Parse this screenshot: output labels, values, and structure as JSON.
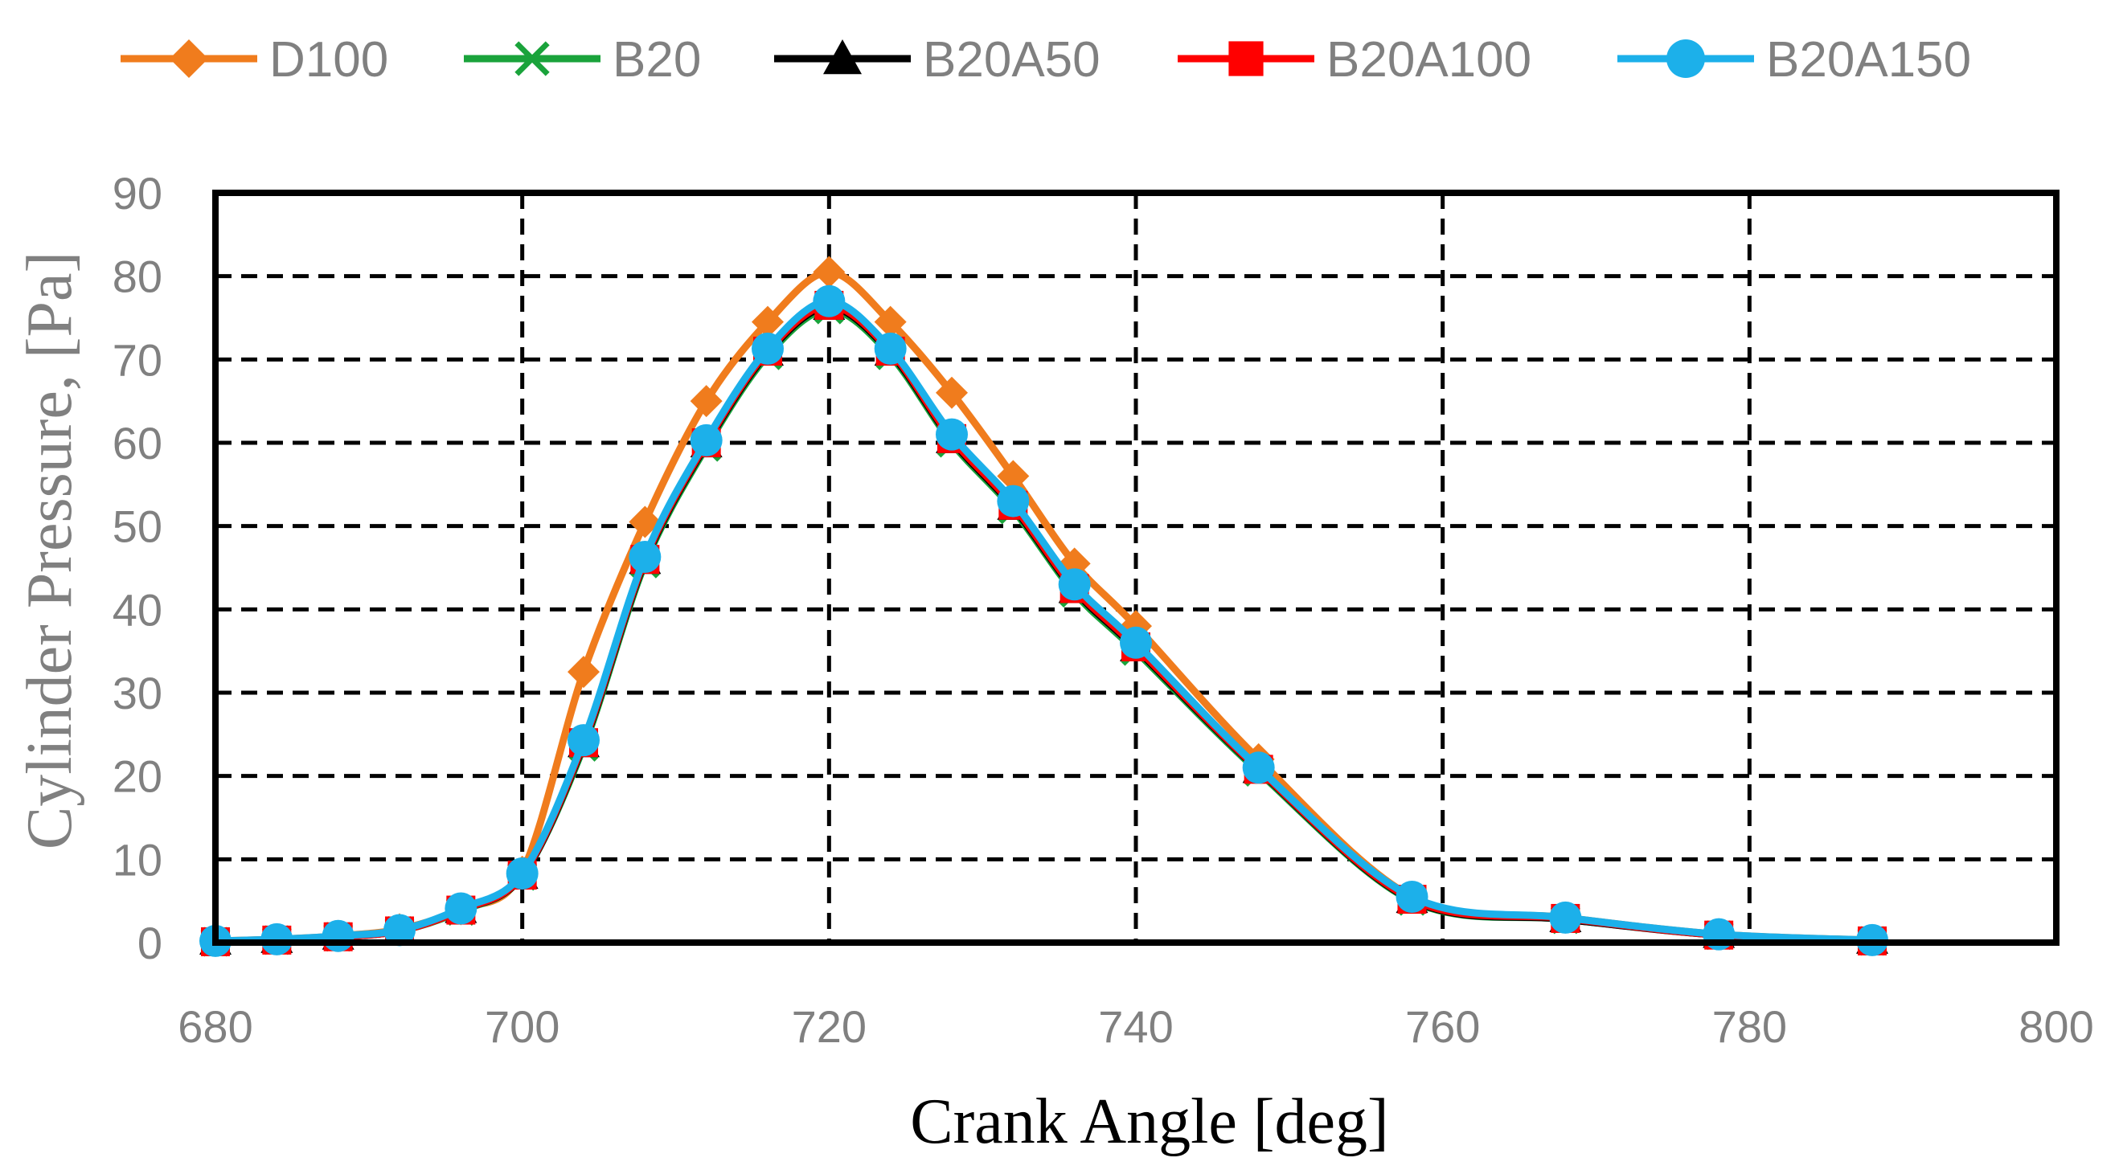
{
  "chart_data": {
    "type": "line",
    "title": "",
    "xlabel": "Crank Angle  [deg]",
    "ylabel": "Cylinder Pressure, [Pa]",
    "xlim": [
      680,
      800
    ],
    "ylim": [
      0,
      90
    ],
    "x_ticks": [
      680,
      700,
      720,
      740,
      760,
      780,
      800
    ],
    "y_ticks": [
      0,
      10,
      20,
      30,
      40,
      50,
      60,
      70,
      80,
      90
    ],
    "grid": true,
    "grid_style": "dashed",
    "legend_position": "top",
    "x": [
      680,
      684,
      688,
      692,
      696,
      700,
      704,
      708,
      712,
      716,
      720,
      724,
      728,
      732,
      736,
      740,
      748,
      758,
      768,
      778,
      788
    ],
    "series": [
      {
        "name": "D100",
        "color": "#f07c1d",
        "marker": "diamond",
        "values": [
          0.2,
          0.4,
          0.8,
          1.6,
          4.0,
          8.5,
          32.5,
          50.5,
          65.0,
          74.5,
          80.5,
          74.5,
          66.0,
          56.0,
          45.5,
          38.0,
          22.0,
          5.5,
          3.0,
          1.0,
          0.3
        ]
      },
      {
        "name": "B20",
        "color": "#1aa33b",
        "marker": "x",
        "values": [
          0.1,
          0.3,
          0.7,
          1.4,
          3.8,
          8.0,
          23.5,
          45.5,
          59.5,
          70.5,
          76.0,
          70.5,
          60.0,
          52.0,
          42.0,
          35.0,
          20.5,
          5.0,
          2.8,
          0.9,
          0.2
        ]
      },
      {
        "name": "B20A50",
        "color": "#000000",
        "marker": "triangle",
        "values": [
          0.1,
          0.3,
          0.7,
          1.4,
          3.9,
          8.0,
          23.8,
          45.8,
          59.8,
          70.8,
          76.3,
          70.8,
          60.3,
          52.3,
          42.3,
          35.3,
          20.7,
          5.1,
          2.8,
          0.9,
          0.2
        ]
      },
      {
        "name": "B20A100",
        "color": "#ff0000",
        "marker": "square",
        "values": [
          0.1,
          0.3,
          0.7,
          1.4,
          3.9,
          8.1,
          24.0,
          46.0,
          60.0,
          71.0,
          76.5,
          71.0,
          60.5,
          52.5,
          42.5,
          35.5,
          20.8,
          5.2,
          2.9,
          0.9,
          0.2
        ]
      },
      {
        "name": "B20A150",
        "color": "#1cb0ea",
        "marker": "circle",
        "values": [
          0.2,
          0.4,
          0.8,
          1.5,
          4.1,
          8.3,
          24.3,
          46.3,
          60.3,
          71.3,
          77.0,
          71.3,
          61.0,
          53.0,
          43.0,
          36.0,
          21.0,
          5.5,
          3.0,
          1.0,
          0.3
        ]
      }
    ]
  }
}
